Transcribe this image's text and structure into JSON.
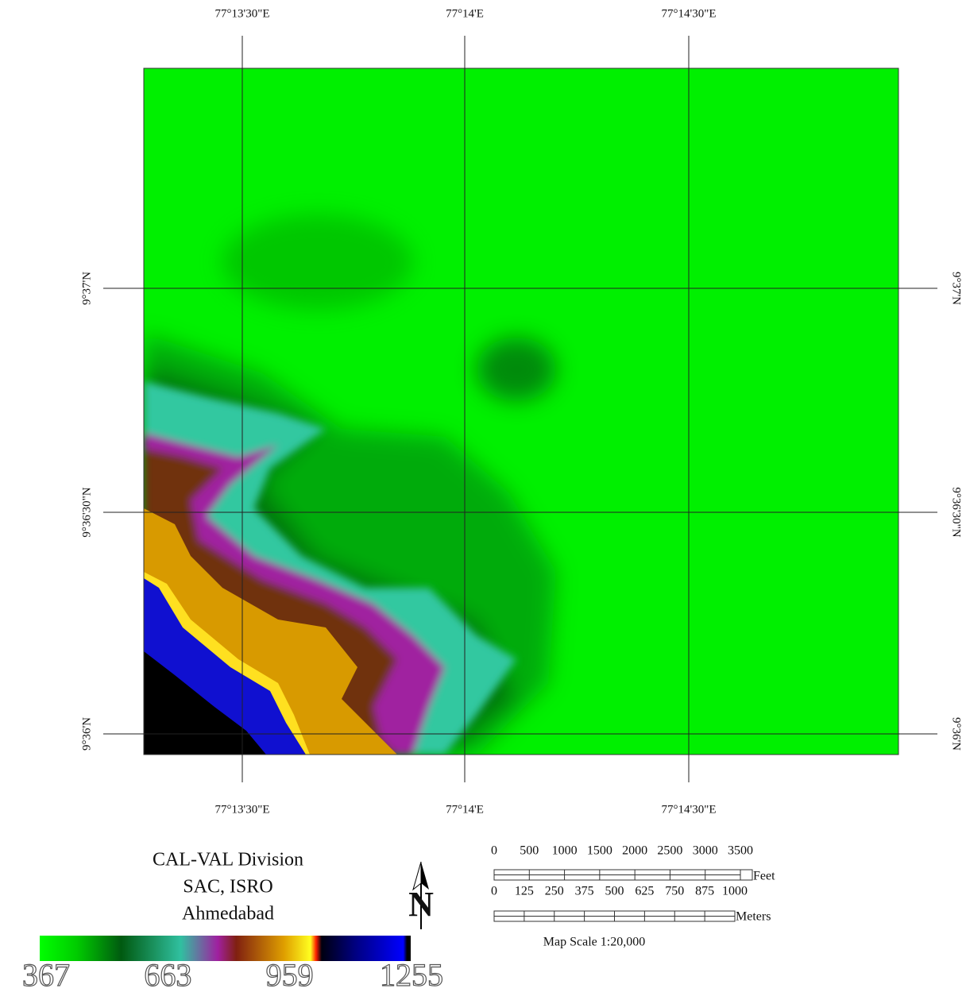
{
  "grid": {
    "top_labels": [
      "77°13'30\"E",
      "77°14'E",
      "77°14'30\"E"
    ],
    "bottom_labels": [
      "77°13'30\"E",
      "77°14'E",
      "77°14'30\"E"
    ],
    "left_labels": [
      "9°37'N",
      "9°36'30\"N",
      "9°36'N"
    ],
    "right_labels": [
      "9°37'N",
      "9°36'30\"N",
      "9°36'N"
    ]
  },
  "credits": {
    "lines": [
      "CAL-VAL Division",
      "SAC, ISRO",
      "Ahmedabad"
    ]
  },
  "north_arrow": {
    "label": "N"
  },
  "legend": {
    "labels": [
      367,
      663,
      959,
      1255
    ]
  },
  "scale_bar": {
    "feet_ticks": [
      0,
      500,
      1000,
      1500,
      2000,
      2500,
      3000,
      3500
    ],
    "feet_unit": "Feet",
    "meter_ticks": [
      0,
      125,
      250,
      375,
      500,
      625,
      750,
      875,
      1000
    ],
    "meter_unit": "Meters",
    "scale_text": "Map Scale 1:20,000"
  }
}
